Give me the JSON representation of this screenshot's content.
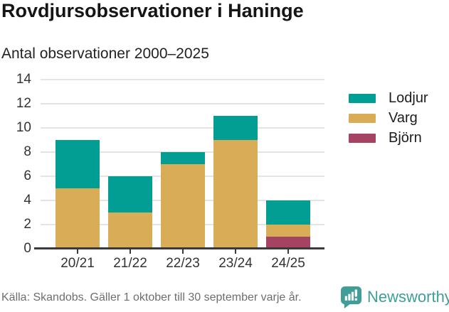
{
  "header": {
    "title": "Rovdjursobservationer i Haninge"
  },
  "chart_data": {
    "type": "bar",
    "stacked": true,
    "title": "Rovdjursobservationer i Haninge",
    "subtitle": "Antal observationer 2000–2025",
    "categories": [
      "20/21",
      "21/22",
      "22/23",
      "23/24",
      "24/25"
    ],
    "series": [
      {
        "name": "Lodjur",
        "color": "#029E94",
        "values": [
          4,
          3,
          1,
          2,
          2
        ]
      },
      {
        "name": "Varg",
        "color": "#D9AC57",
        "values": [
          5,
          3,
          7,
          9,
          1
        ]
      },
      {
        "name": "Björn",
        "color": "#A44362",
        "values": [
          0,
          0,
          0,
          0,
          1
        ]
      }
    ],
    "stack_order_bottom_to_top": [
      "Björn",
      "Varg",
      "Lodjur"
    ],
    "totals": [
      9,
      6,
      8,
      11,
      4
    ],
    "xlabel": "",
    "ylabel": "",
    "ylim": [
      0,
      14
    ],
    "yticks": [
      0,
      2,
      4,
      6,
      8,
      10,
      12,
      14
    ],
    "grid": true,
    "legend_position": "right"
  },
  "footer": {
    "source": "Källa: Skandobs. Gäller 1 oktober till 30 september varje år.",
    "brand": "Newsworthy"
  },
  "colors": {
    "grid": "#E4E4E4",
    "axis": "#3a3a3a",
    "brand_teal": "#3F9E98",
    "footer_text": "#6E6E6E"
  }
}
